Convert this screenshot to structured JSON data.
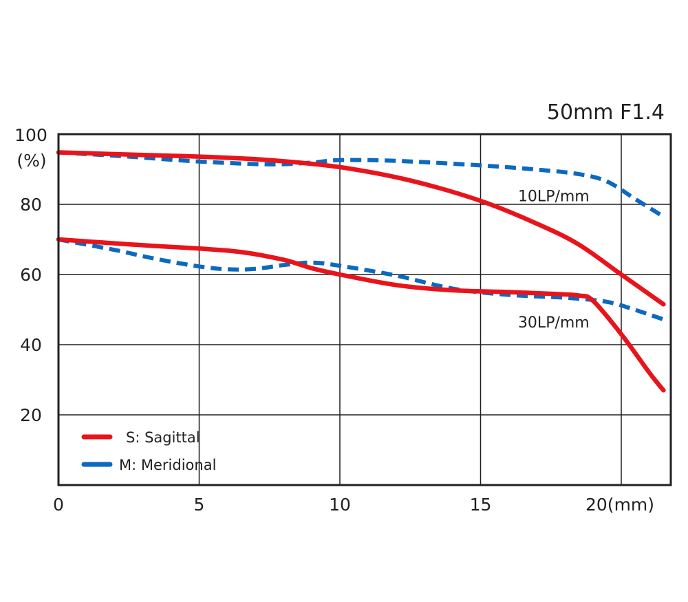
{
  "chart_data": {
    "type": "line",
    "title": "50mm F1.4",
    "ylabel_unit": "(%)",
    "x_tick_labels": [
      "0",
      "5",
      "10",
      "15",
      "20(mm)"
    ],
    "y_tick_labels": [
      "100",
      "80",
      "60",
      "40",
      "20"
    ],
    "xlim": [
      0,
      21.6
    ],
    "ylim": [
      0,
      100
    ],
    "x_ticks": [
      0,
      5,
      10,
      15,
      20
    ],
    "y_ticks": [
      20,
      40,
      60,
      80,
      100
    ],
    "grid": true,
    "legend_position": "bottom-left",
    "annotations": [
      {
        "text": "10LP/mm",
        "x": 17.6,
        "y": 82.5
      },
      {
        "text": "30LP/mm",
        "x": 17.6,
        "y": 46.5
      }
    ],
    "legend": [
      {
        "name": "S: Sagittal",
        "color": "#e8141c",
        "style": "solid"
      },
      {
        "name": "M: Meridional",
        "color": "#0b6abf",
        "style": "dashed"
      }
    ],
    "colors": {
      "sagittal": "#e8141c",
      "meridional": "#0b6abf",
      "frame": "#231f20"
    },
    "series": [
      {
        "name": "S: Sagittal",
        "group": "10LP/mm",
        "style": "solid",
        "x": [
          0,
          2.5,
          5,
          7.5,
          10,
          12.5,
          15,
          17,
          18.5,
          20,
          21.5
        ],
        "y": [
          94.8,
          94.2,
          93.6,
          92.6,
          90.6,
          86.8,
          81,
          74.5,
          68.5,
          60,
          51.5
        ]
      },
      {
        "name": "M: Meridional",
        "group": "10LP/mm",
        "style": "dashed",
        "x": [
          0,
          2.5,
          5,
          7.5,
          9,
          10,
          12,
          15,
          17,
          18.5,
          19.5,
          20.5,
          21.5
        ],
        "y": [
          94.8,
          93.6,
          92.2,
          91.4,
          91.9,
          92.6,
          92.4,
          91.1,
          89.9,
          88.6,
          86.5,
          81.5,
          76.5
        ]
      },
      {
        "name": "S: Sagittal",
        "group": "30LP/mm",
        "style": "solid",
        "x": [
          0,
          2.5,
          5,
          6.5,
          8,
          9,
          10,
          12,
          14,
          16,
          17.5,
          18.5,
          19,
          20,
          21,
          21.5
        ],
        "y": [
          70,
          68.6,
          67.4,
          66.4,
          64.2,
          61.8,
          60,
          57,
          55.5,
          55,
          54.5,
          54,
          52.5,
          43,
          32,
          27
        ]
      },
      {
        "name": "M: Meridional",
        "group": "30LP/mm",
        "style": "dashed",
        "x": [
          0,
          2,
          3.5,
          5,
          6,
          7,
          8,
          9,
          10,
          12,
          14,
          16,
          18,
          19.5,
          20.5,
          21.5
        ],
        "y": [
          70,
          67,
          64.4,
          62.3,
          61.5,
          61.6,
          62.7,
          63.4,
          62.5,
          59.7,
          56,
          54.2,
          53.4,
          52.2,
          49.9,
          47.2
        ]
      }
    ]
  }
}
